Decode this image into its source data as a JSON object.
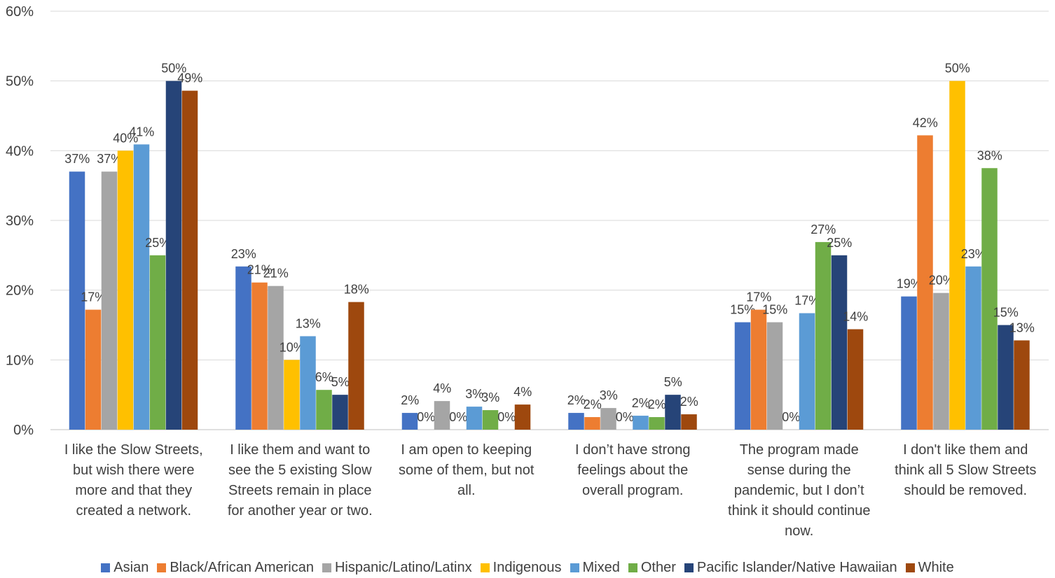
{
  "chart_data": {
    "type": "bar",
    "title": "",
    "xlabel": "",
    "ylabel": "",
    "ylim": [
      0,
      60
    ],
    "yticks": [
      "0%",
      "10%",
      "20%",
      "30%",
      "40%",
      "50%",
      "60%"
    ],
    "grid": true,
    "legend_position": "bottom",
    "categories": [
      [
        "I like the Slow Streets,",
        "but wish there were",
        "more and that they",
        "created a network."
      ],
      [
        "I like them and want to",
        "see the 5 existing Slow",
        "Streets remain in place",
        "for another year or two."
      ],
      [
        "I am open to keeping",
        "some of them, but not",
        "all."
      ],
      [
        "I don’t have strong",
        "feelings about the",
        "overall program."
      ],
      [
        "The program made",
        "sense during the",
        "pandemic, but I don’t",
        "think it should continue",
        "now."
      ],
      [
        "I don't like them and",
        "think all 5 Slow Streets",
        "should be removed."
      ]
    ],
    "series": [
      {
        "name": "Asian",
        "color": "#4472C4",
        "values": [
          37,
          23.4,
          2.4,
          2.4,
          15.4,
          19.1
        ],
        "labels": [
          "37%",
          "23%",
          "2%",
          "2%",
          "15%",
          "19%"
        ]
      },
      {
        "name": "Black/African American",
        "color": "#ED7D31",
        "values": [
          17.2,
          21.1,
          0,
          1.8,
          17.2,
          42.2
        ],
        "labels": [
          "17%",
          "21%",
          "0%",
          "2%",
          "17%",
          "42%"
        ]
      },
      {
        "name": "Hispanic/Latino/Latinx",
        "color": "#A5A5A5",
        "values": [
          37,
          20.6,
          4.1,
          3.1,
          15.4,
          19.6
        ],
        "labels": [
          "37%",
          "21%",
          "4%",
          "3%",
          "15%",
          "20%"
        ]
      },
      {
        "name": "Indigenous",
        "color": "#FFC000",
        "values": [
          40,
          10,
          0,
          0,
          0,
          50
        ],
        "labels": [
          "40%",
          "10%",
          "0%",
          "0%",
          "0%",
          "50%"
        ]
      },
      {
        "name": "Mixed",
        "color": "#5B9BD5",
        "values": [
          40.9,
          13.4,
          3.3,
          2,
          16.7,
          23.4
        ],
        "labels": [
          "41%",
          "13%",
          "3%",
          "2%",
          "17%",
          "23%"
        ]
      },
      {
        "name": "Other",
        "color": "#70AD47",
        "values": [
          25,
          5.7,
          2.8,
          1.8,
          26.9,
          37.5
        ],
        "labels": [
          "25%",
          "6%",
          "3%",
          "2%",
          "27%",
          "38%"
        ]
      },
      {
        "name": "Pacific Islander/Native Hawaiian",
        "color": "#264478",
        "values": [
          50,
          5,
          0,
          5,
          25,
          15
        ],
        "labels": [
          "50%",
          "5%",
          "0%",
          "5%",
          "25%",
          "15%"
        ]
      },
      {
        "name": "White",
        "color": "#9E480E",
        "values": [
          48.6,
          18.3,
          3.6,
          2.2,
          14.4,
          12.8
        ],
        "labels": [
          "49%",
          "18%",
          "4%",
          "2%",
          "14%",
          "13%"
        ]
      }
    ]
  }
}
